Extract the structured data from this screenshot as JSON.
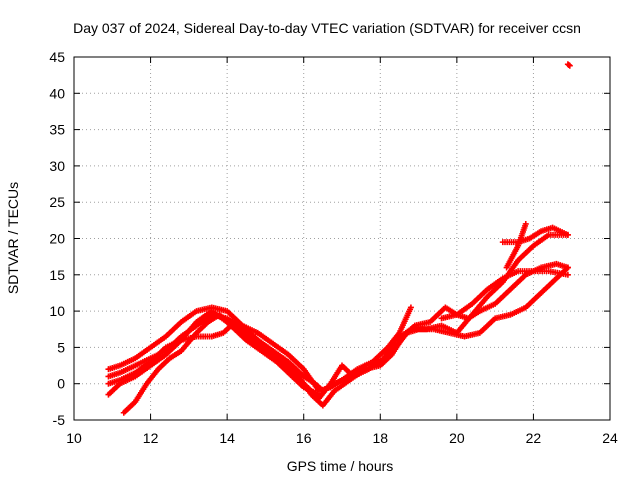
{
  "chart_data": {
    "type": "scatter",
    "title": "Day 037 of 2024, Sidereal Day-to-day VTEC variation (SDTVAR) for receiver ccsn",
    "xlabel": "GPS time / hours",
    "ylabel": "SDTVAR / TECUs",
    "xlim": [
      10,
      24
    ],
    "ylim": [
      -5,
      45
    ],
    "xticks": [
      10,
      12,
      14,
      16,
      18,
      20,
      22,
      24
    ],
    "yticks": [
      -5,
      0,
      5,
      10,
      15,
      20,
      25,
      30,
      35,
      40,
      45
    ],
    "x_tick_labels": [
      "10",
      "12",
      "14",
      "16",
      "18",
      "20",
      "22",
      "24"
    ],
    "y_tick_labels": [
      "-5",
      "0",
      "5",
      "10",
      "15",
      "20",
      "25",
      "30",
      "35",
      "40",
      "45"
    ],
    "grid": true,
    "legend": "none",
    "marker": "plus",
    "color": "#ff0000",
    "series": [
      {
        "points": [
          [
            10.9,
            2.0
          ],
          [
            11.2,
            2.5
          ],
          [
            11.6,
            3.5
          ],
          [
            12.0,
            5.0
          ],
          [
            12.4,
            6.5
          ],
          [
            12.8,
            8.5
          ],
          [
            13.2,
            10.0
          ],
          [
            13.6,
            10.5
          ],
          [
            14.0,
            10.0
          ],
          [
            14.4,
            8.0
          ],
          [
            14.8,
            7.0
          ],
          [
            15.2,
            5.5
          ],
          [
            15.6,
            4.0
          ],
          [
            16.0,
            2.0
          ],
          [
            16.4,
            -1.0
          ],
          [
            16.7,
            -0.5
          ],
          [
            17.0,
            0.5
          ],
          [
            17.4,
            2.0
          ],
          [
            17.8,
            3.0
          ],
          [
            18.2,
            5.0
          ],
          [
            18.5,
            7.0
          ],
          [
            18.8,
            10.5
          ]
        ]
      },
      {
        "points": [
          [
            10.9,
            1.0
          ],
          [
            11.2,
            1.5
          ],
          [
            11.6,
            2.5
          ],
          [
            12.0,
            3.5
          ],
          [
            12.4,
            4.5
          ],
          [
            12.8,
            6.5
          ],
          [
            13.2,
            8.0
          ],
          [
            13.6,
            9.5
          ],
          [
            14.0,
            9.0
          ],
          [
            14.4,
            7.5
          ],
          [
            14.8,
            6.0
          ],
          [
            15.2,
            4.5
          ],
          [
            15.6,
            3.0
          ],
          [
            16.0,
            1.0
          ],
          [
            16.3,
            0.0
          ],
          [
            16.5,
            -1.0
          ],
          [
            16.8,
            0.0
          ],
          [
            17.2,
            1.0
          ],
          [
            17.6,
            2.5
          ],
          [
            18.0,
            3.0
          ],
          [
            18.4,
            5.0
          ],
          [
            18.7,
            7.0
          ],
          [
            19.0,
            7.5
          ],
          [
            19.4,
            7.5
          ],
          [
            19.8,
            7.0
          ],
          [
            20.2,
            6.5
          ],
          [
            20.6,
            7.0
          ],
          [
            21.0,
            9.0
          ],
          [
            21.4,
            9.5
          ],
          [
            21.8,
            10.5
          ],
          [
            22.2,
            12.5
          ],
          [
            22.6,
            14.5
          ],
          [
            22.9,
            16.0
          ]
        ]
      },
      {
        "points": [
          [
            10.9,
            0.0
          ],
          [
            11.2,
            0.5
          ],
          [
            11.6,
            1.5
          ],
          [
            12.0,
            3.0
          ],
          [
            12.4,
            5.0
          ],
          [
            12.8,
            6.0
          ],
          [
            13.2,
            6.5
          ],
          [
            13.6,
            6.5
          ],
          [
            13.9,
            7.0
          ],
          [
            14.2,
            8.5
          ],
          [
            14.6,
            7.0
          ],
          [
            15.0,
            5.0
          ],
          [
            15.4,
            3.5
          ],
          [
            15.8,
            1.5
          ],
          [
            16.2,
            -1.5
          ],
          [
            16.5,
            -3.0
          ],
          [
            16.8,
            -1.0
          ],
          [
            17.2,
            0.5
          ],
          [
            17.6,
            2.0
          ],
          [
            18.0,
            2.5
          ],
          [
            18.3,
            4.0
          ],
          [
            18.6,
            6.5
          ],
          [
            18.9,
            8.0
          ],
          [
            19.3,
            8.5
          ],
          [
            19.7,
            10.5
          ],
          [
            20.0,
            9.5
          ],
          [
            20.3,
            9.0
          ],
          [
            20.6,
            10.0
          ],
          [
            21.0,
            11.0
          ],
          [
            21.4,
            13.0
          ],
          [
            21.8,
            15.0
          ],
          [
            22.2,
            16.0
          ],
          [
            22.6,
            16.5
          ],
          [
            22.9,
            16.0
          ]
        ]
      },
      {
        "points": [
          [
            10.9,
            -1.5
          ],
          [
            11.2,
            0.0
          ],
          [
            11.6,
            1.0
          ],
          [
            12.0,
            2.5
          ],
          [
            12.4,
            4.0
          ],
          [
            12.8,
            6.0
          ],
          [
            13.2,
            8.5
          ],
          [
            13.6,
            10.0
          ],
          [
            14.0,
            8.5
          ],
          [
            14.4,
            7.0
          ],
          [
            14.8,
            5.5
          ],
          [
            15.2,
            4.0
          ],
          [
            15.6,
            2.0
          ],
          [
            16.0,
            0.0
          ],
          [
            16.4,
            -2.0
          ],
          [
            16.7,
            0.0
          ],
          [
            17.0,
            2.5
          ],
          [
            17.3,
            1.0
          ],
          [
            17.7,
            2.0
          ],
          [
            18.1,
            3.5
          ],
          [
            18.4,
            6.0
          ],
          [
            18.8,
            7.5
          ],
          [
            19.2,
            7.5
          ],
          [
            19.6,
            8.0
          ],
          [
            20.0,
            7.0
          ],
          [
            20.4,
            9.5
          ],
          [
            20.8,
            12.0
          ],
          [
            21.2,
            14.0
          ],
          [
            21.6,
            17.0
          ],
          [
            22.0,
            19.0
          ],
          [
            22.4,
            20.5
          ],
          [
            22.9,
            20.5
          ]
        ]
      },
      {
        "points": [
          [
            11.3,
            -4.0
          ],
          [
            11.6,
            -2.5
          ],
          [
            11.9,
            0.0
          ],
          [
            12.2,
            2.0
          ],
          [
            12.5,
            3.5
          ],
          [
            12.8,
            4.5
          ],
          [
            13.2,
            7.0
          ],
          [
            13.5,
            8.5
          ],
          [
            13.8,
            9.5
          ],
          [
            14.1,
            8.0
          ],
          [
            14.5,
            6.0
          ],
          [
            14.9,
            4.5
          ],
          [
            15.3,
            3.0
          ],
          [
            15.7,
            1.0
          ],
          [
            16.0,
            -0.5
          ],
          [
            16.4,
            -1.5
          ]
        ]
      },
      {
        "points": [
          [
            19.6,
            9.0
          ],
          [
            20.0,
            9.5
          ],
          [
            20.4,
            11.0
          ],
          [
            20.8,
            13.0
          ],
          [
            21.2,
            14.5
          ],
          [
            21.6,
            15.5
          ],
          [
            22.0,
            15.5
          ],
          [
            22.4,
            15.5
          ],
          [
            22.9,
            15.0
          ]
        ]
      },
      {
        "points": [
          [
            21.2,
            19.5
          ],
          [
            21.6,
            19.5
          ],
          [
            21.9,
            20.0
          ],
          [
            22.2,
            21.0
          ],
          [
            22.5,
            21.5
          ],
          [
            22.9,
            20.5
          ]
        ]
      },
      {
        "points": [
          [
            21.3,
            16.0
          ],
          [
            21.6,
            19.0
          ],
          [
            21.8,
            22.0
          ]
        ]
      },
      {
        "points": [
          [
            22.9,
            44.0
          ],
          [
            22.95,
            43.8
          ]
        ]
      }
    ]
  }
}
